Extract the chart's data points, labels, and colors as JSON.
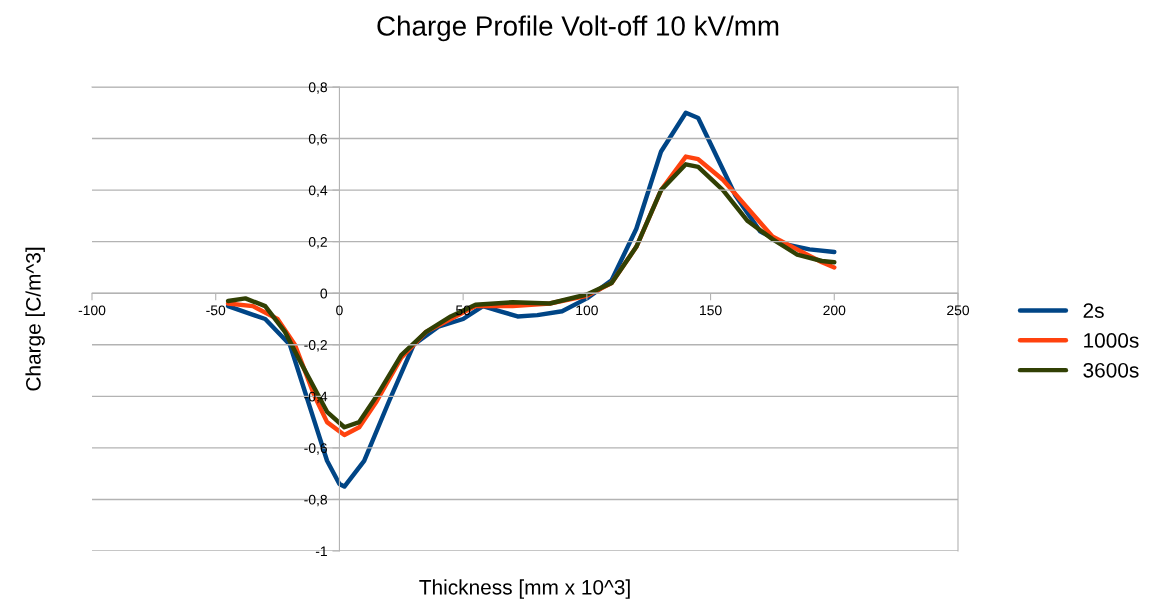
{
  "chart_data": {
    "type": "line",
    "title": "Charge Profile Volt-off 10 kV/mm",
    "xlabel": "Thickness [mm x 10^3]",
    "ylabel": "Charge [C/m^3]",
    "xlim": [
      -100,
      250
    ],
    "xticks": [
      -100,
      -50,
      0,
      50,
      100,
      150,
      200,
      250
    ],
    "ylim": [
      -1,
      0.8
    ],
    "yticks": [
      {
        "value": -1,
        "label": "-1"
      },
      {
        "value": -0.8,
        "label": "-0,8"
      },
      {
        "value": -0.6,
        "label": "-0,6"
      },
      {
        "value": -0.4,
        "label": "-0,4"
      },
      {
        "value": -0.2,
        "label": "-0,2"
      },
      {
        "value": 0,
        "label": "0"
      },
      {
        "value": 0.2,
        "label": "0,2"
      },
      {
        "value": 0.4,
        "label": "0,4"
      },
      {
        "value": 0.6,
        "label": "0,6"
      },
      {
        "value": 0.8,
        "label": "0,8"
      }
    ],
    "grid": "y",
    "legend": "right",
    "marker": "none",
    "line_style": "solid",
    "series": [
      {
        "name": "2s",
        "color": "#004586",
        "x": [
          -45,
          -30,
          -20,
          -10,
          -5,
          0,
          2,
          10,
          20,
          30,
          40,
          50,
          58,
          65,
          72,
          80,
          90,
          100,
          110,
          120,
          130,
          140,
          145,
          150,
          160,
          170,
          180,
          190,
          200
        ],
        "values": [
          -0.05,
          -0.1,
          -0.2,
          -0.5,
          -0.65,
          -0.74,
          -0.75,
          -0.65,
          -0.42,
          -0.2,
          -0.13,
          -0.1,
          -0.05,
          -0.07,
          -0.09,
          -0.085,
          -0.07,
          -0.02,
          0.05,
          0.25,
          0.55,
          0.7,
          0.68,
          0.58,
          0.38,
          0.24,
          0.19,
          0.17,
          0.16
        ]
      },
      {
        "name": "1000s",
        "color": "#ff420e",
        "x": [
          -45,
          -35,
          -25,
          -18,
          -10,
          -5,
          2,
          8,
          15,
          25,
          35,
          45,
          55,
          70,
          85,
          100,
          110,
          120,
          130,
          140,
          145,
          155,
          165,
          175,
          185,
          195,
          200
        ],
        "values": [
          -0.04,
          -0.05,
          -0.1,
          -0.2,
          -0.4,
          -0.5,
          -0.55,
          -0.52,
          -0.42,
          -0.25,
          -0.15,
          -0.1,
          -0.05,
          -0.05,
          -0.04,
          -0.01,
          0.04,
          0.18,
          0.4,
          0.53,
          0.52,
          0.44,
          0.33,
          0.22,
          0.17,
          0.12,
          0.1
        ]
      },
      {
        "name": "3600s",
        "color": "#314004",
        "x": [
          -45,
          -38,
          -30,
          -22,
          -15,
          -5,
          2,
          8,
          15,
          25,
          35,
          45,
          55,
          70,
          85,
          100,
          110,
          120,
          130,
          140,
          145,
          155,
          165,
          175,
          185,
          195,
          200
        ],
        "values": [
          -0.03,
          -0.02,
          -0.05,
          -0.15,
          -0.28,
          -0.46,
          -0.52,
          -0.5,
          -0.4,
          -0.24,
          -0.15,
          -0.09,
          -0.045,
          -0.035,
          -0.04,
          -0.005,
          0.04,
          0.18,
          0.4,
          0.5,
          0.49,
          0.4,
          0.28,
          0.21,
          0.15,
          0.125,
          0.12
        ]
      }
    ]
  }
}
